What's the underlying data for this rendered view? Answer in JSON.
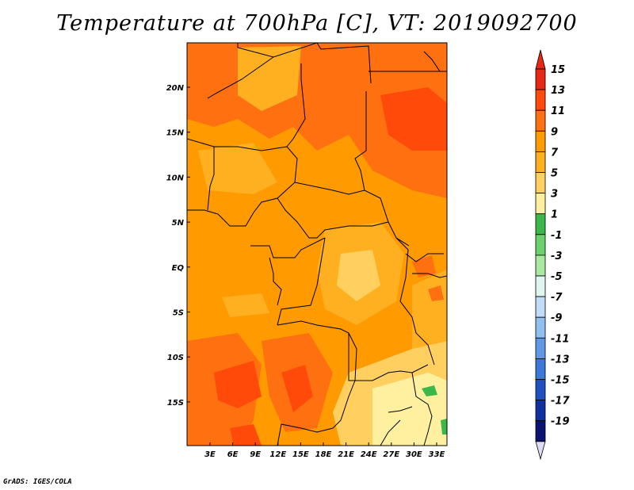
{
  "title": "Temperature at 700hPa [C], VT: 2019092700",
  "footer": "GrADS: IGES/COLA",
  "map": {
    "lon_labels": [
      "3E",
      "6E",
      "9E",
      "12E",
      "15E",
      "18E",
      "21E",
      "24E",
      "27E",
      "30E",
      "33E"
    ],
    "lat_labels": [
      "20N",
      "15N",
      "10N",
      "5N",
      "EQ",
      "5S",
      "10S",
      "15S"
    ]
  },
  "colorbar": {
    "labels": [
      "15",
      "13",
      "11",
      "9",
      "7",
      "5",
      "3",
      "1",
      "-1",
      "-3",
      "-5",
      "-7",
      "-9",
      "-11",
      "-13",
      "-15",
      "-17",
      "-19"
    ],
    "colors": [
      "#e62814",
      "#ff4a0a",
      "#ff7010",
      "#ff9a00",
      "#ffb020",
      "#ffd060",
      "#fff0a0",
      "#3cb84a",
      "#6cd06c",
      "#a8e8a0",
      "#e0f4f0",
      "#c0dcf8",
      "#90c0f0",
      "#6098e8",
      "#3c78d8",
      "#2050c0",
      "#1030a0",
      "#0a1470"
    ],
    "over_color": "#e62814",
    "under_color": "#dcdcf0"
  }
}
